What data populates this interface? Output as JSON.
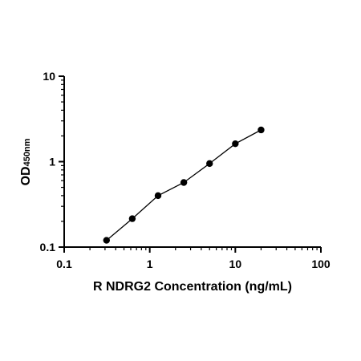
{
  "chart_data": {
    "type": "scatter",
    "title": "",
    "xlabel": "R NDRG2 Concentration (ng/mL)",
    "ylabel_main": "OD",
    "ylabel_sub": "450nm",
    "x_scale": "log",
    "y_scale": "log",
    "xlim": [
      0.1,
      100
    ],
    "ylim": [
      0.1,
      10
    ],
    "x_ticks": [
      "0.1",
      "1",
      "10",
      "100"
    ],
    "y_ticks": [
      "0.1",
      "1",
      "10"
    ],
    "grid": false,
    "legend": "none",
    "series": [
      {
        "x": [
          0.3125,
          0.625,
          1.25,
          2.5,
          5,
          10,
          20
        ],
        "y": [
          0.12,
          0.215,
          0.4,
          0.57,
          0.95,
          1.62,
          2.35
        ],
        "fit_line": true,
        "color": "#000000"
      }
    ]
  }
}
